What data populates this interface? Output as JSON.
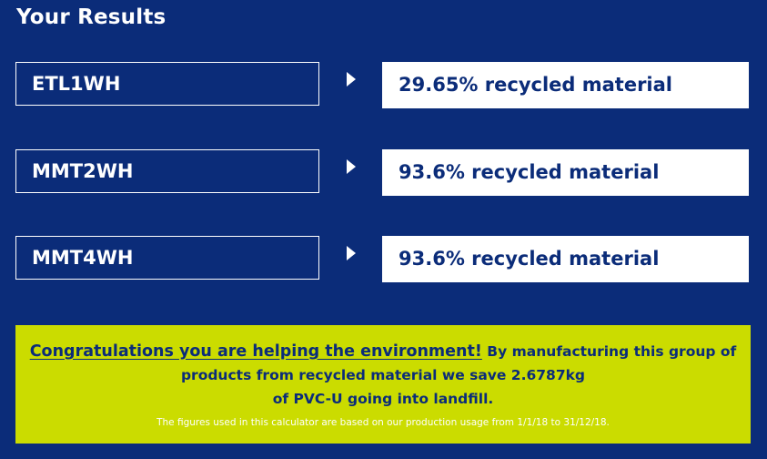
{
  "page": {
    "title": "Your Results"
  },
  "results": [
    {
      "code": "ETL1WH",
      "result": "29.65% recycled material"
    },
    {
      "code": "MMT2WH",
      "result": "93.6% recycled material"
    },
    {
      "code": "MMT4WH",
      "result": "93.6% recycled material"
    }
  ],
  "banner": {
    "headline": "Congratulations you are helping the environment!",
    "line1": "By manufacturing this group of",
    "line2": "products from recycled material we save 2.6787kg",
    "line3": "of PVC-U going into landfill.",
    "footnote": "The figures used in this calculator are based on our production usage from 1/1/18 to 31/12/18."
  },
  "colors": {
    "background": "#0b2c79",
    "banner": "#cbdc00",
    "text_dark": "#0b2c79",
    "text_light": "#ffffff"
  },
  "icons": {
    "row_arrow": "arrow-right-icon"
  }
}
